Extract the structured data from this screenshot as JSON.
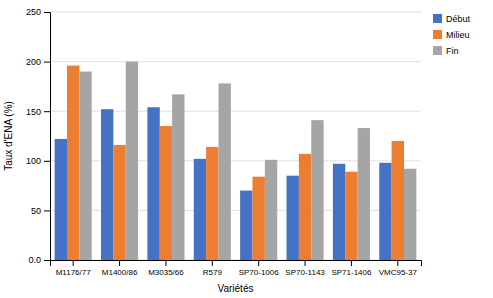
{
  "chart_data": {
    "type": "bar",
    "categories": [
      "M1176/77",
      "M1400/86",
      "M3035/66",
      "R579",
      "SP70-1006",
      "SP70-1143",
      "SP71-1406",
      "VMC95-37"
    ],
    "series": [
      {
        "name": "Début",
        "color": "#4472C4",
        "values": [
          122,
          152,
          154,
          102,
          70,
          85,
          97,
          98
        ]
      },
      {
        "name": "Milieu",
        "color": "#ED7D31",
        "values": [
          196,
          116,
          135,
          114,
          84,
          107,
          89,
          120
        ]
      },
      {
        "name": "Fin",
        "color": "#A5A5A5",
        "values": [
          190,
          200,
          167,
          178,
          101,
          141,
          133,
          92
        ]
      }
    ],
    "xlabel": "Variétés",
    "ylabel": "Taux d'ENA (%)",
    "ylim": [
      0,
      250
    ],
    "yticks": [
      {
        "value": 0,
        "label": "0.0"
      },
      50,
      100,
      150,
      200,
      250
    ],
    "grid": true,
    "legend": "right"
  }
}
